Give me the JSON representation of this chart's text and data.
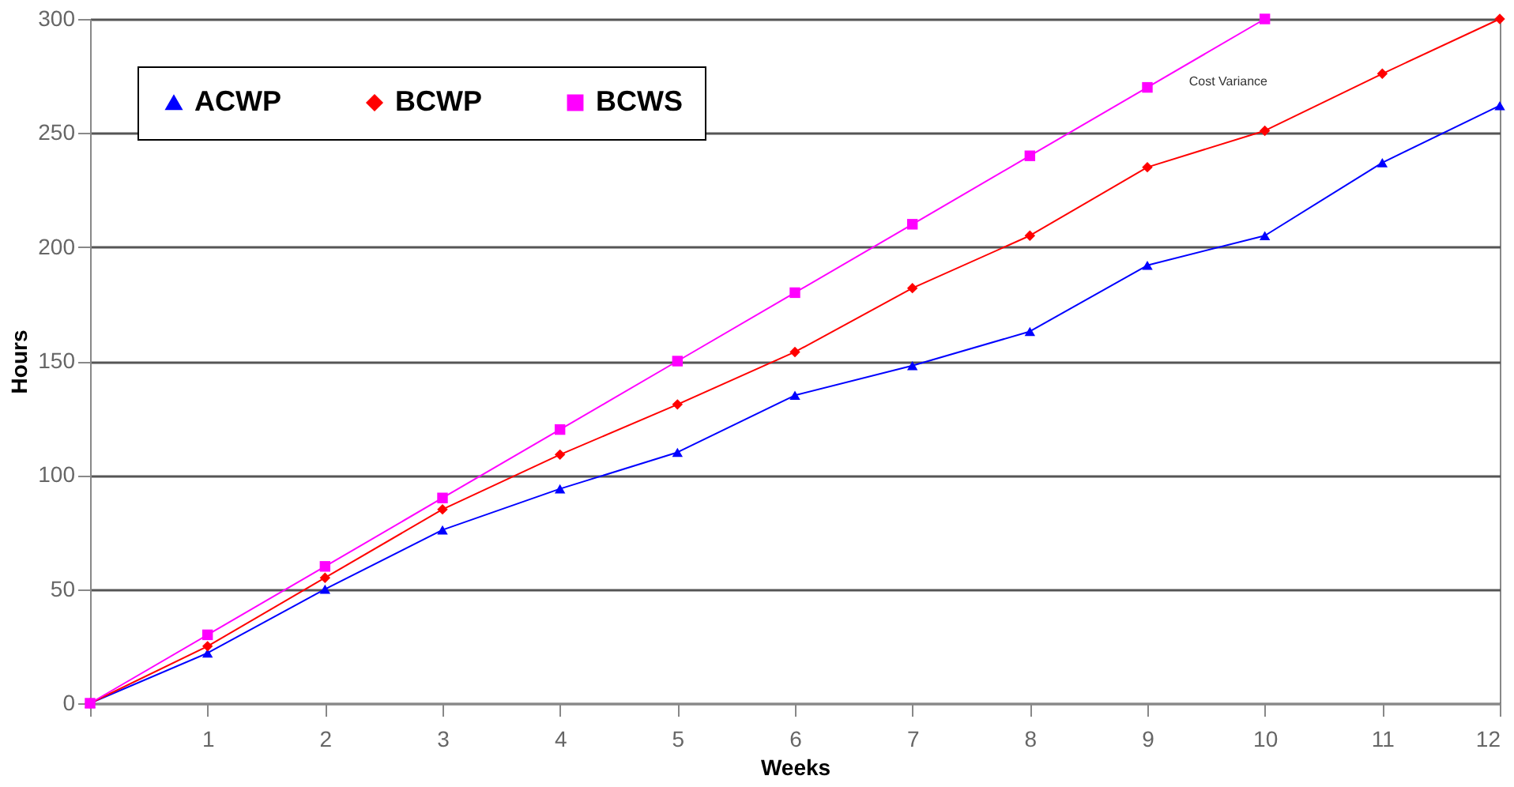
{
  "chart_data": {
    "type": "line",
    "xlabel": "Weeks",
    "ylabel": "Hours",
    "x": [
      0,
      1,
      2,
      3,
      4,
      5,
      6,
      7,
      8,
      9,
      10,
      11,
      12
    ],
    "series": [
      {
        "name": "ACWP",
        "color": "#0000ff",
        "marker": "triangle",
        "values": [
          0,
          22,
          50,
          76,
          94,
          110,
          135,
          148,
          163,
          192,
          205,
          237,
          262
        ]
      },
      {
        "name": "BCWP",
        "color": "#ff0000",
        "marker": "diamond",
        "values": [
          0,
          25,
          55,
          85,
          109,
          131,
          154,
          182,
          205,
          235,
          251,
          276,
          300
        ]
      },
      {
        "name": "BCWS",
        "color": "#ff00ff",
        "marker": "square",
        "values": [
          0,
          30,
          60,
          90,
          120,
          150,
          180,
          210,
          240,
          270,
          300,
          null,
          null
        ]
      }
    ],
    "xlim": [
      0,
      12
    ],
    "xticks": [
      {
        "value": 0,
        "label": null
      },
      1,
      2,
      3,
      4,
      5,
      6,
      7,
      8,
      9,
      10,
      11,
      12
    ],
    "ylim": [
      0,
      300
    ],
    "yticks": [
      0,
      50,
      100,
      150,
      200,
      250,
      300
    ],
    "grid": "y",
    "legend": "top left",
    "line_style": "solid",
    "annotations": [
      "Cost Variance"
    ]
  }
}
